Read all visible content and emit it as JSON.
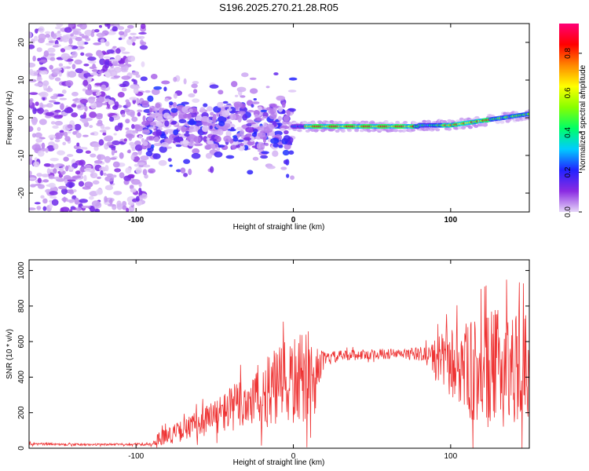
{
  "title": "S196.2025.270.21.28.R05",
  "chart_data": [
    {
      "type": "heatmap",
      "name": "spectrogram",
      "xlabel": "Height of straight line (km)",
      "ylabel": "Frequency (Hz)",
      "xlim": [
        -168,
        150
      ],
      "ylim": [
        -25,
        25
      ],
      "xticks": [
        -100,
        0,
        100
      ],
      "yticks": [
        -20,
        -10,
        0,
        10,
        20
      ],
      "colorbar": {
        "label": "Normalized spectral amplitude",
        "range": [
          0.0,
          0.95
        ],
        "ticks": [
          0.0,
          0.2,
          0.4,
          0.6,
          0.8
        ],
        "tick_labels": [
          "0.0",
          "0.2",
          "0.4",
          "0.6",
          "0.8"
        ],
        "colors": [
          "#e6d6f8",
          "#8a2be2",
          "#2222ff",
          "#00ccff",
          "#00ff66",
          "#88ff00",
          "#ffff00",
          "#ff8800",
          "#ff0000",
          "#ff0077"
        ]
      },
      "regions": [
        {
          "x": [
            -168,
            -95
          ],
          "freq": [
            -25,
            25
          ],
          "amplitude": [
            0.02,
            0.1
          ],
          "texture": "scattered"
        },
        {
          "x": [
            -95,
            0
          ],
          "freq": [
            -15,
            12
          ],
          "amplitude": [
            0.05,
            0.2
          ],
          "texture": "clustered"
        },
        {
          "x": [
            0,
            150
          ],
          "freq": [
            -3,
            0
          ],
          "amplitude": [
            0.3,
            0.95
          ],
          "texture": "narrow band"
        }
      ]
    },
    {
      "type": "line",
      "name": "snr",
      "xlabel": "Height of straight line (km)",
      "ylabel": "SNR (10 * v/v)",
      "xlim": [
        -168,
        150
      ],
      "ylim": [
        0,
        1060
      ],
      "xticks": [
        -100,
        0,
        100
      ],
      "yticks": [
        0,
        200,
        400,
        600,
        800,
        1000
      ],
      "color": "#ee3333",
      "series": [
        {
          "name": "SNR",
          "x": [
            -168,
            -150,
            -130,
            -110,
            -100,
            -90,
            -85,
            -80,
            -70,
            -60,
            -50,
            -40,
            -30,
            -20,
            -10,
            0,
            10,
            15,
            20,
            30,
            40,
            50,
            60,
            70,
            80,
            85,
            90,
            100,
            110,
            115,
            120,
            130,
            140,
            150
          ],
          "mean": [
            25,
            22,
            20,
            22,
            22,
            22,
            60,
            70,
            100,
            140,
            180,
            220,
            260,
            300,
            340,
            370,
            400,
            450,
            500,
            520,
            525,
            530,
            530,
            530,
            530,
            520,
            500,
            480,
            450,
            420,
            420,
            450,
            460,
            470
          ],
          "spread": [
            8,
            6,
            6,
            6,
            6,
            8,
            40,
            50,
            60,
            80,
            100,
            130,
            160,
            190,
            230,
            260,
            260,
            120,
            40,
            30,
            30,
            30,
            30,
            30,
            40,
            60,
            120,
            200,
            260,
            300,
            320,
            340,
            320,
            300
          ]
        }
      ]
    }
  ]
}
